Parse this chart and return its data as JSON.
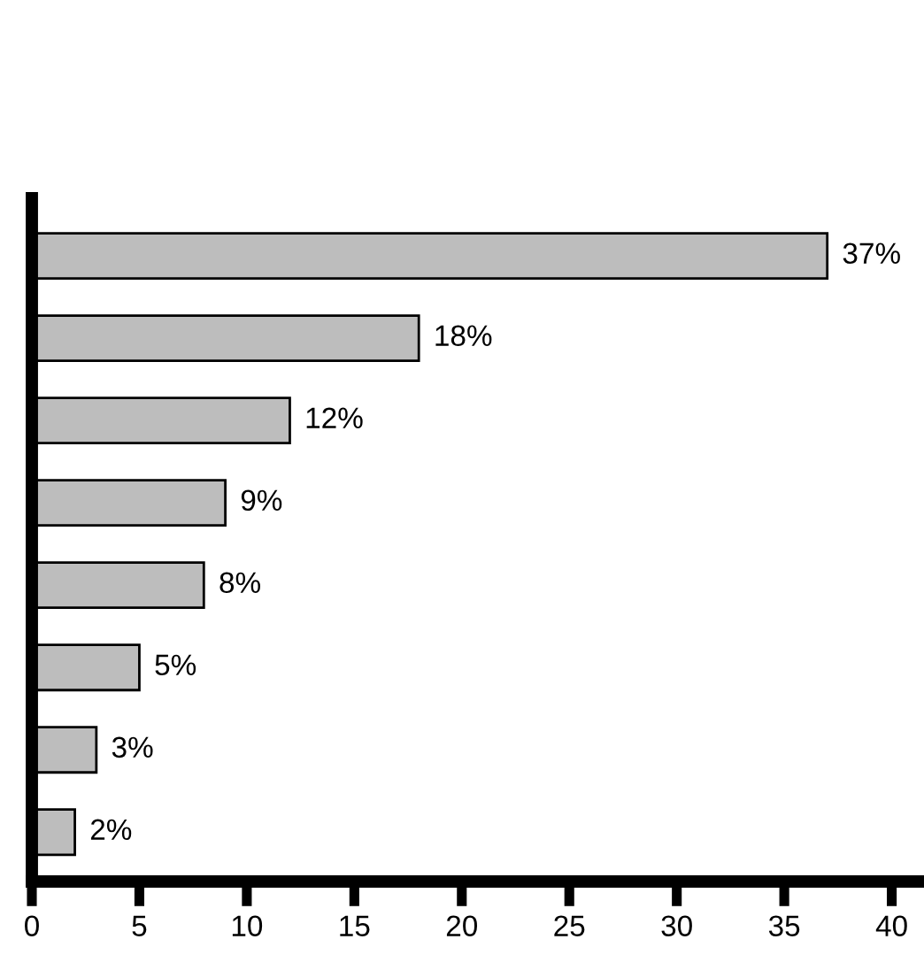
{
  "chart_data": {
    "type": "bar",
    "orientation": "horizontal",
    "categories": [
      null,
      null,
      null,
      null,
      null,
      null,
      null,
      null
    ],
    "values": [
      37,
      18,
      12,
      9,
      8,
      5,
      3,
      2
    ],
    "value_labels": [
      "37%",
      "18%",
      "12%",
      "9%",
      "8%",
      "5%",
      "3%",
      "2%"
    ],
    "color": "#bdbdbd",
    "xlim": [
      0,
      41.5
    ],
    "xticks": [
      0,
      5,
      10,
      15,
      20,
      25,
      30,
      35,
      40
    ],
    "tick_labels": "x",
    "grid": false
  }
}
